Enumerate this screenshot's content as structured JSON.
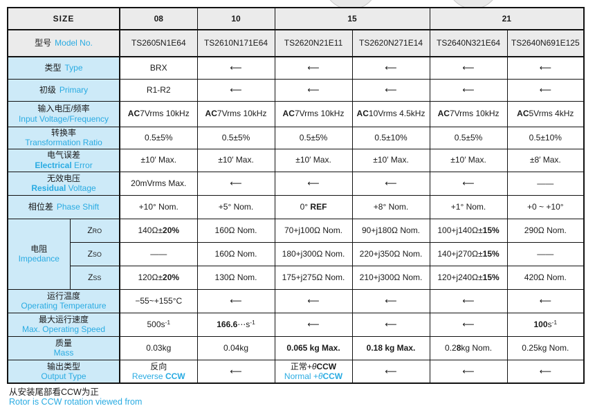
{
  "colors": {
    "accent_blue": "#29abe2",
    "label_bg": "#cdeaf8",
    "header_bg": "#ebebeb",
    "border": "#111111",
    "circle_fill": "#e9e9e9",
    "circle_stroke": "#c9c9c9"
  },
  "header": {
    "size_label": "SIZE",
    "groups": [
      {
        "label": "08",
        "span": 1
      },
      {
        "label": "10",
        "span": 1
      },
      {
        "label": "15",
        "span": 2
      },
      {
        "label": "21",
        "span": 2
      }
    ]
  },
  "rows": {
    "model": {
      "zh": "型号",
      "en": "Model No.",
      "cells": [
        "TS2605N1E64",
        "TS2610N171E64",
        "TS2620N21E11",
        "TS2620N271E14",
        "TS2640N321E64",
        "TS2640N691E125"
      ]
    },
    "type": {
      "zh": "类型",
      "en": "Type",
      "cells": [
        "BRX",
        "⟵",
        "⟵",
        "⟵",
        "⟵",
        "⟵"
      ]
    },
    "primary": {
      "zh": "初级",
      "en": "Primary",
      "cells": [
        "R1-R2",
        "⟵",
        "⟵",
        "⟵",
        "⟵",
        "⟵"
      ]
    },
    "input_voltage": {
      "zh": "输入电压/频率",
      "en": "Input Voltage/Frequency",
      "cells": [
        [
          {
            "t": "AC",
            "b": true
          },
          {
            "t": "7Vrms 10kHz"
          }
        ],
        [
          {
            "t": "AC",
            "b": true
          },
          {
            "t": "7Vrms 10kHz"
          }
        ],
        [
          {
            "t": "AC",
            "b": true
          },
          {
            "t": "7Vrms 10kHz"
          }
        ],
        [
          {
            "t": "AC",
            "b": true
          },
          {
            "t": "10Vrms 4.5kHz"
          }
        ],
        [
          {
            "t": "AC",
            "b": true
          },
          {
            "t": "7Vrms 10kHz"
          }
        ],
        [
          {
            "t": "AC",
            "b": true
          },
          {
            "t": "5Vrms 4kHz"
          }
        ]
      ]
    },
    "ratio": {
      "zh": "转换率",
      "en": "Transformation Ratio",
      "cells": [
        "0.5±5%",
        "0.5±5%",
        "0.5±5%",
        "0.5±10%",
        "0.5±5%",
        "0.5±10%"
      ]
    },
    "electrical_error": {
      "zh": "电气误差",
      "en": [
        {
          "t": "Electrical",
          "b": true
        },
        {
          "t": " Error"
        }
      ],
      "cells": [
        "±10′ Max.",
        "±10′ Max.",
        "±10′ Max.",
        "±10′ Max.",
        "±10′ Max.",
        "±8′ Max."
      ]
    },
    "residual_voltage": {
      "zh": "无效电压",
      "en": [
        {
          "t": "Residual",
          "b": true
        },
        {
          "t": " Voltage"
        }
      ],
      "cells": [
        "20mVrms Max.",
        "⟵",
        "⟵",
        "⟵",
        "⟵",
        "——"
      ]
    },
    "phase_shift": {
      "zh": "相位差",
      "en": "Phase Shift",
      "cells": [
        "+10° Nom.",
        "+5° Nom.",
        [
          {
            "t": "0° "
          },
          {
            "t": "REF",
            "b": true
          }
        ],
        "+8° Nom.",
        "+1° Nom.",
        "+0 ~ +10°"
      ]
    },
    "impedance": {
      "zh": "电阻",
      "en": "Impedance",
      "sub": {
        "zro": [
          {
            "t": "Z"
          },
          {
            "t": "RO",
            "sm": true
          }
        ],
        "zso": [
          {
            "t": "Z"
          },
          {
            "t": "SO",
            "sm": true
          }
        ],
        "zss": [
          {
            "t": "Z"
          },
          {
            "t": "SS",
            "sm": true
          }
        ]
      },
      "zro_cells": [
        [
          {
            "t": "140Ω±"
          },
          {
            "t": "20%",
            "b": true
          }
        ],
        "160Ω Nom.",
        "70+j100Ω Nom.",
        "90+j180Ω Nom.",
        [
          {
            "t": "100+j140Ω±"
          },
          {
            "t": "15%",
            "b": true
          }
        ],
        "290Ω Nom."
      ],
      "zso_cells": [
        "——",
        "160Ω Nom.",
        "180+j300Ω Nom.",
        "220+j350Ω Nom.",
        [
          {
            "t": "140+j270Ω±"
          },
          {
            "t": "15%",
            "b": true
          }
        ],
        "——"
      ],
      "zss_cells": [
        [
          {
            "t": "120Ω±"
          },
          {
            "t": "20%",
            "b": true
          }
        ],
        "130Ω Nom.",
        "175+j275Ω Nom.",
        "210+j300Ω Nom.",
        [
          {
            "t": "120+j240Ω±"
          },
          {
            "t": "15%",
            "b": true
          }
        ],
        "420Ω Nom."
      ]
    },
    "operating_temperature": {
      "zh": "运行温度",
      "en": "Operating Temperature",
      "cells": [
        "−55~+155°C",
        "⟵",
        "⟵",
        "⟵",
        "⟵",
        "⟵"
      ]
    },
    "max_speed": {
      "zh": "最大运行速度",
      "en": "Max. Operating Speed",
      "cells": [
        [
          {
            "t": "500s"
          },
          {
            "t": "-1",
            "sup": true
          }
        ],
        [
          {
            "t": "166.6",
            "b": true
          },
          {
            "t": "⋯s"
          },
          {
            "t": "-1",
            "sup": true
          }
        ],
        "⟵",
        "⟵",
        "⟵",
        [
          {
            "t": "100",
            "b": true
          },
          {
            "t": "s"
          },
          {
            "t": "-1",
            "sup": true
          }
        ]
      ]
    },
    "mass": {
      "zh": "质量",
      "en": "Mass",
      "cells": [
        "0.03kg",
        "0.04kg",
        [
          {
            "t": "0.065 kg Max.",
            "b": true
          }
        ],
        [
          {
            "t": "0.18 kg Max.",
            "b": true
          }
        ],
        [
          {
            "t": "0.2"
          },
          {
            "t": "8",
            "b": true
          },
          {
            "t": "kg Nom."
          }
        ],
        "0.25kg Nom."
      ]
    },
    "output_type": {
      "zh": "输出类型",
      "en": "Output Type",
      "cells": [
        [
          {
            "t": "反向"
          },
          {
            "br": true
          },
          {
            "t": "Reverse ",
            "c": "blue"
          },
          {
            "t": "CCW",
            "c": "blue",
            "b": true
          }
        ],
        "⟵",
        [
          {
            "t": "正常+"
          },
          {
            "t": "θ",
            "i": true
          },
          {
            "t": "CCW",
            "b": true
          },
          {
            "br": true
          },
          {
            "t": "Normal +",
            "c": "blue"
          },
          {
            "t": "θ",
            "c": "blue",
            "i": true
          },
          {
            "t": "CCW",
            "c": "blue",
            "b": true
          }
        ],
        "⟵",
        "⟵",
        "⟵"
      ]
    }
  },
  "footer": {
    "zh": "从安装尾部看CCW为正",
    "en": "Rotor is CCW rotation viewed from"
  }
}
